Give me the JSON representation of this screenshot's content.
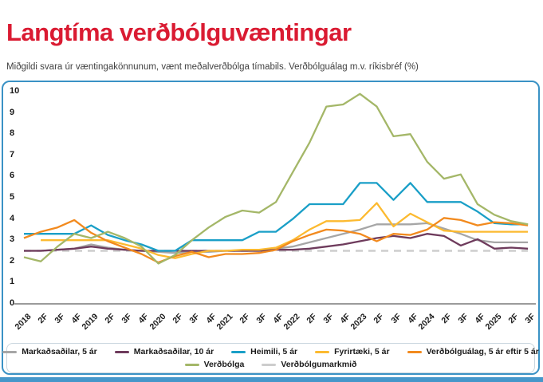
{
  "header": {
    "title": "Langtíma verðbólguvæntingar",
    "subtitle": "Miðgildi svara úr væntingakönnunum, vænt meðalverðbólga tímabils. Verðbólguálag m.v. ríkisbréf (%)"
  },
  "colors": {
    "title_red": "#da1b32",
    "card_border_blue": "#3a92c5",
    "bottom_bar_blue": "#4697ca",
    "axis_gray": "#9b9b9b"
  },
  "chart_data": {
    "type": "line",
    "title": "Langtíma verðbólguvæntingar",
    "xlabel": "",
    "ylabel": "",
    "ylim": [
      0,
      10
    ],
    "yticks": [
      0,
      1,
      2,
      3,
      4,
      5,
      6,
      7,
      8,
      9,
      10
    ],
    "grid": false,
    "legend_position": "bottom",
    "categories": [
      "2018",
      "2F",
      "3F",
      "4F",
      "2019",
      "2F",
      "3F",
      "4F",
      "2020",
      "2F",
      "3F",
      "4F",
      "2021",
      "2F",
      "3F",
      "4F",
      "2022",
      "2F",
      "3F",
      "4F",
      "2023",
      "2F",
      "3F",
      "4F",
      "2024",
      "2F",
      "3F",
      "4F",
      "2025",
      "2F",
      "3F"
    ],
    "series": [
      {
        "name": "Markaðsaðilar, 5 ár",
        "color": "#a6a6a6",
        "dashed": false,
        "values": [
          2.5,
          2.5,
          2.55,
          2.6,
          2.8,
          2.65,
          2.55,
          2.5,
          2.45,
          2.4,
          2.45,
          2.45,
          2.5,
          2.5,
          2.5,
          2.6,
          2.7,
          2.9,
          3.1,
          3.3,
          3.5,
          3.75,
          3.75,
          3.75,
          3.8,
          3.55,
          3.3,
          3.0,
          2.9,
          2.9,
          2.9
        ]
      },
      {
        "name": "Markaðsaðilar, 10 ár",
        "color": "#6e3b5c",
        "dashed": false,
        "values": [
          2.5,
          2.5,
          2.55,
          2.6,
          2.7,
          2.6,
          2.55,
          2.5,
          2.5,
          2.5,
          2.5,
          2.5,
          2.5,
          2.5,
          2.5,
          2.55,
          2.55,
          2.6,
          2.7,
          2.8,
          2.95,
          3.1,
          3.2,
          3.1,
          3.3,
          3.2,
          2.75,
          3.05,
          2.6,
          2.65,
          2.6
        ]
      },
      {
        "name": "Heimili, 5 ár",
        "color": "#1a9fc7",
        "dashed": false,
        "values": [
          3.3,
          3.3,
          3.3,
          3.3,
          3.7,
          3.25,
          3.0,
          2.8,
          2.5,
          2.5,
          3.0,
          3.0,
          3.0,
          3.0,
          3.4,
          3.4,
          4.0,
          4.7,
          4.7,
          4.7,
          5.7,
          5.7,
          4.9,
          5.7,
          4.8,
          4.8,
          4.8,
          4.35,
          3.8,
          3.75,
          3.75
        ]
      },
      {
        "name": "Fyrirtæki, 5 ár",
        "color": "#fcba30",
        "dashed": false,
        "values": [
          null,
          3.0,
          3.0,
          3.0,
          3.0,
          3.0,
          2.8,
          2.6,
          2.3,
          2.15,
          2.35,
          2.5,
          2.5,
          2.55,
          2.55,
          2.65,
          3.0,
          3.5,
          3.9,
          3.9,
          3.95,
          4.75,
          3.65,
          4.25,
          3.85,
          3.45,
          3.4,
          3.4,
          3.4,
          3.4,
          3.4
        ]
      },
      {
        "name": "Verðbólguálag, 5 ár eftir 5 ár",
        "color": "#f28a1e",
        "dashed": false,
        "values": [
          3.1,
          3.4,
          3.6,
          3.95,
          3.35,
          2.95,
          2.65,
          2.35,
          1.95,
          2.25,
          2.45,
          2.2,
          2.35,
          2.35,
          2.4,
          2.55,
          2.95,
          3.25,
          3.5,
          3.45,
          3.3,
          2.95,
          3.3,
          3.25,
          3.5,
          4.05,
          3.95,
          3.7,
          3.85,
          3.8,
          3.7
        ]
      },
      {
        "name": "Verðbólga",
        "color": "#a4b768",
        "dashed": false,
        "values": [
          2.2,
          2.0,
          2.7,
          3.3,
          3.1,
          3.4,
          3.1,
          2.7,
          1.9,
          2.3,
          3.0,
          3.6,
          4.1,
          4.4,
          4.3,
          4.8,
          6.2,
          7.6,
          9.3,
          9.4,
          9.9,
          9.3,
          7.9,
          8.0,
          6.7,
          5.9,
          6.1,
          4.7,
          4.2,
          3.9,
          3.75
        ]
      },
      {
        "name": "Verðbólgumarkmið",
        "color": "#cdcdcd",
        "dashed": true,
        "values": [
          2.5,
          2.5,
          2.5,
          2.5,
          2.5,
          2.5,
          2.5,
          2.5,
          2.5,
          2.5,
          2.5,
          2.5,
          2.5,
          2.5,
          2.5,
          2.5,
          2.5,
          2.5,
          2.5,
          2.5,
          2.5,
          2.5,
          2.5,
          2.5,
          2.5,
          2.5,
          2.5,
          2.5,
          2.5,
          2.5,
          2.5
        ]
      }
    ]
  }
}
